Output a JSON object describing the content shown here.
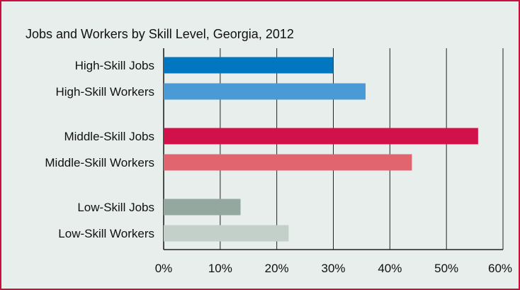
{
  "chart_data": {
    "type": "bar",
    "orientation": "horizontal",
    "title": "Jobs and Workers by Skill Level, Georgia, 2012",
    "xlabel": "",
    "ylabel": "",
    "xlim": [
      0,
      60
    ],
    "tick_values": [
      0,
      10,
      20,
      30,
      40,
      50,
      60
    ],
    "tick_labels": [
      "0%",
      "10%",
      "20%",
      "30%",
      "40%",
      "50%",
      "60%"
    ],
    "grid": "vertical",
    "categories": [
      "High-Skill Jobs",
      "High-Skill Workers",
      "Middle-Skill Jobs",
      "Middle-Skill Workers",
      "Low-Skill Jobs",
      "Low-Skill Workers"
    ],
    "values": [
      30,
      35.7,
      55.6,
      43.9,
      13.6,
      22.1
    ],
    "colors": [
      "#0077c0",
      "#4a9ad6",
      "#d2114b",
      "#e0656f",
      "#94a89f",
      "#c3cfc9"
    ]
  }
}
